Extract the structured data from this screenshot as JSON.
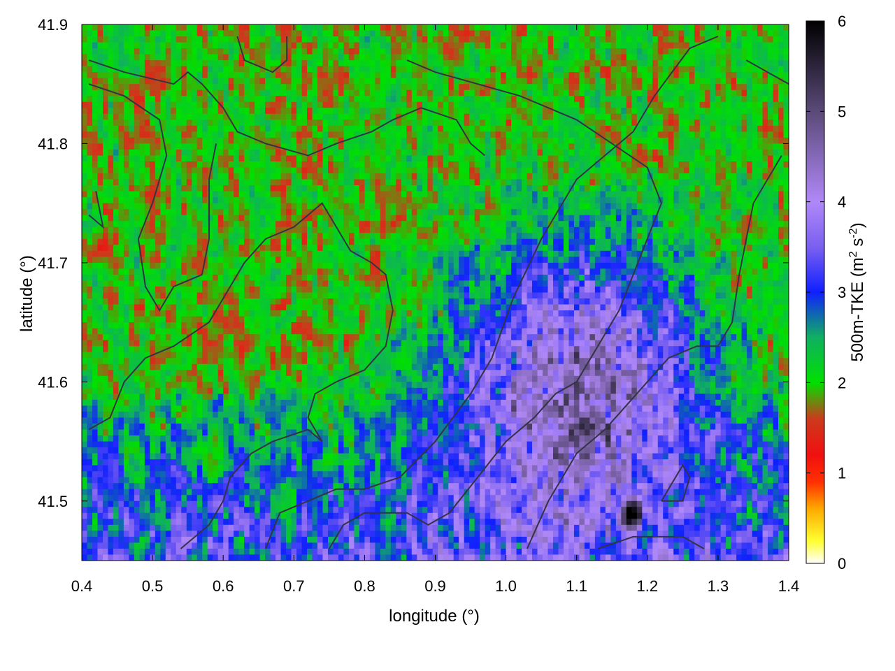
{
  "chart_data": {
    "type": "heatmap",
    "title": "",
    "xlabel": "longitude (°)",
    "ylabel": "latitude (°)",
    "xlim": [
      0.4,
      1.4
    ],
    "ylim": [
      41.45,
      41.9
    ],
    "xticks": [
      "0.4",
      "0.5",
      "0.6",
      "0.7",
      "0.8",
      "0.9",
      "1.0",
      "1.1",
      "1.2",
      "1.3",
      "1.4"
    ],
    "yticks": [
      "41.5",
      "41.6",
      "41.7",
      "41.8",
      "41.9"
    ],
    "colorbar": {
      "label": "500m-TKE (m² s⁻²)",
      "label_base": "500m-TKE (m",
      "label_sup1": "2",
      "label_mid": " s",
      "label_sup2": "-2",
      "label_end": ")",
      "range": [
        0,
        6
      ],
      "ticks": [
        "0",
        "1",
        "2",
        "3",
        "4",
        "5",
        "6"
      ],
      "stops": [
        {
          "value": 0.0,
          "color": "#ffffff"
        },
        {
          "value": 0.25,
          "color": "#ffff30"
        },
        {
          "value": 0.6,
          "color": "#ffaa00"
        },
        {
          "value": 0.9,
          "color": "#ff3000"
        },
        {
          "value": 1.2,
          "color": "#f01010"
        },
        {
          "value": 1.6,
          "color": "#cc3a1c"
        },
        {
          "value": 2.0,
          "color": "#00e000"
        },
        {
          "value": 2.5,
          "color": "#10b060"
        },
        {
          "value": 3.0,
          "color": "#1020ff"
        },
        {
          "value": 3.5,
          "color": "#7a60f0"
        },
        {
          "value": 4.0,
          "color": "#b088f8"
        },
        {
          "value": 5.0,
          "color": "#5a4a78"
        },
        {
          "value": 6.0,
          "color": "#000000"
        }
      ]
    },
    "field_description": {
      "high_region_center": [
        1.1,
        41.6
      ],
      "peak": {
        "lon": 1.18,
        "lat": 41.49,
        "value": 5.6
      },
      "typical_north": 1.3,
      "typical_south": 2.6
    },
    "contour_color": "#333344",
    "grid": true
  }
}
